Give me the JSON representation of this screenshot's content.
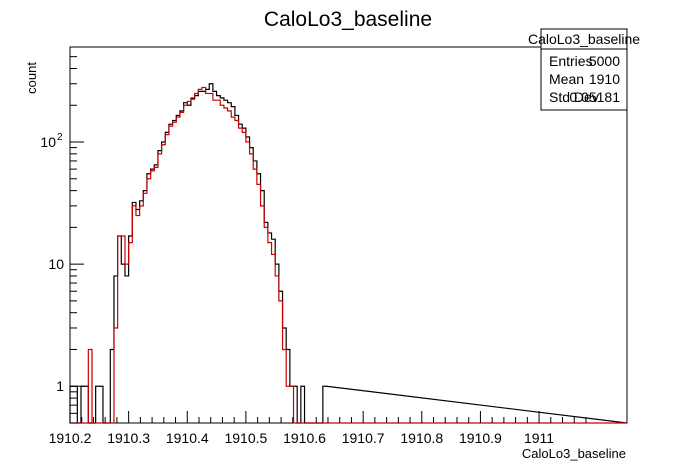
{
  "chart_data": {
    "type": "histogram",
    "title": "CaloLo3_baseline",
    "xlabel": "CaloLo3_baseline",
    "ylabel": "count",
    "xlim": [
      1910.2,
      1911.15
    ],
    "ylim": [
      0.5,
      600
    ],
    "yscale": "log",
    "x_ticks": [
      1910.2,
      1910.3,
      1910.4,
      1910.5,
      1910.6,
      1910.7,
      1910.8,
      1910.9,
      1911
    ],
    "x_tick_labels": [
      "1910.2",
      "1910.3",
      "1910.4",
      "1910.5",
      "1910.6",
      "1910.7",
      "1910.8",
      "1910.9",
      "1911"
    ],
    "y_tick_labels": [
      {
        "value": 1,
        "label": "1"
      },
      {
        "value": 10,
        "label": "10"
      },
      {
        "value": 100,
        "label": "10",
        "exponent": "2"
      }
    ],
    "grid": false,
    "bin_start": 1910.2,
    "bin_width": 0.00625,
    "series": [
      {
        "color": "#000000",
        "values": [
          1,
          1,
          0,
          1,
          1,
          0,
          0,
          1,
          1,
          0,
          0,
          2,
          8,
          17,
          10,
          8,
          17,
          32,
          28,
          33,
          40,
          55,
          60,
          65,
          85,
          100,
          120,
          140,
          150,
          165,
          180,
          210,
          200,
          225,
          240,
          260,
          260,
          270,
          300,
          260,
          240,
          230,
          220,
          210,
          195,
          165,
          140,
          130,
          110,
          90,
          70,
          55,
          40,
          22,
          18,
          16,
          10,
          6,
          3,
          2,
          1,
          1,
          0,
          1,
          0,
          0,
          0,
          0,
          0,
          1
        ]
      },
      {
        "color": "#cc0000",
        "values": [
          0,
          0,
          0,
          0,
          0,
          2,
          0,
          0,
          0,
          0,
          0,
          0,
          3,
          17,
          17,
          10,
          15,
          30,
          25,
          30,
          38,
          50,
          58,
          62,
          80,
          95,
          115,
          135,
          145,
          160,
          175,
          200,
          215,
          230,
          250,
          270,
          280,
          250,
          250,
          220,
          220,
          200,
          190,
          180,
          160,
          150,
          130,
          120,
          100,
          80,
          60,
          45,
          30,
          20,
          15,
          12,
          8,
          5,
          2,
          1,
          1,
          0,
          0,
          0,
          0,
          0,
          0,
          0,
          0,
          0
        ]
      }
    ]
  },
  "stats_box": {
    "title": "CaloLo3_baseline",
    "rows": [
      {
        "label": "Entries",
        "value": "5000"
      },
      {
        "label": "Mean",
        "value": "1910"
      },
      {
        "label": "Std Dev",
        "value": "0.05181"
      }
    ]
  }
}
